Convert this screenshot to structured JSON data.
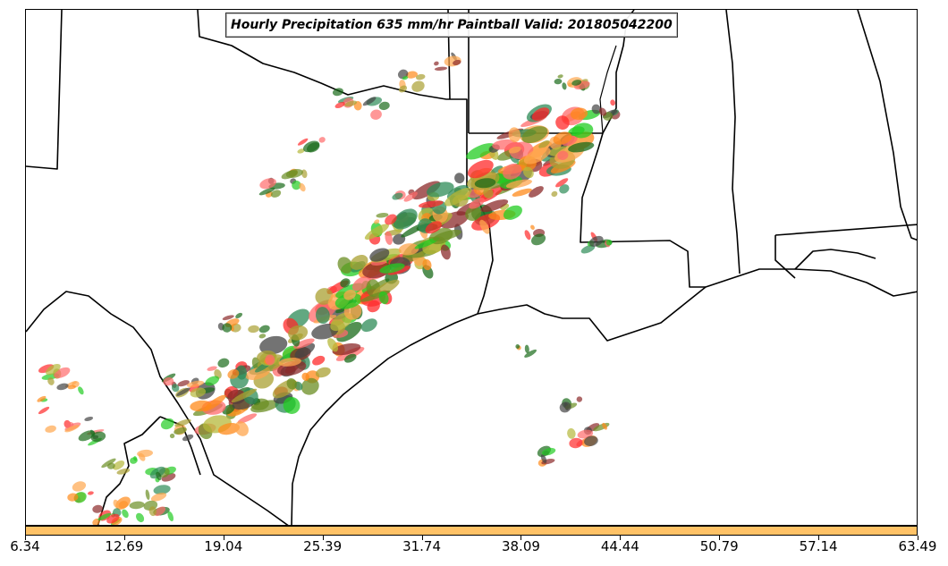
{
  "title": "Hourly Precipitation 635 mm/hr Paintball Valid: 201805042200",
  "colorbar": {
    "color": "#ffc266",
    "ticks": [
      "6.34",
      "12.69",
      "19.04",
      "25.39",
      "31.74",
      "38.09",
      "44.44",
      "50.79",
      "57.14",
      "63.49"
    ]
  },
  "paintball_colors": [
    "#ff2a2a",
    "#ff8a1a",
    "#ffa64d",
    "#ff6b6b",
    "#8b2a2a",
    "#6b8e23",
    "#a9a032",
    "#2e8b57",
    "#1a6b1a",
    "#22cc22",
    "#444444",
    "#b5b83a"
  ]
}
